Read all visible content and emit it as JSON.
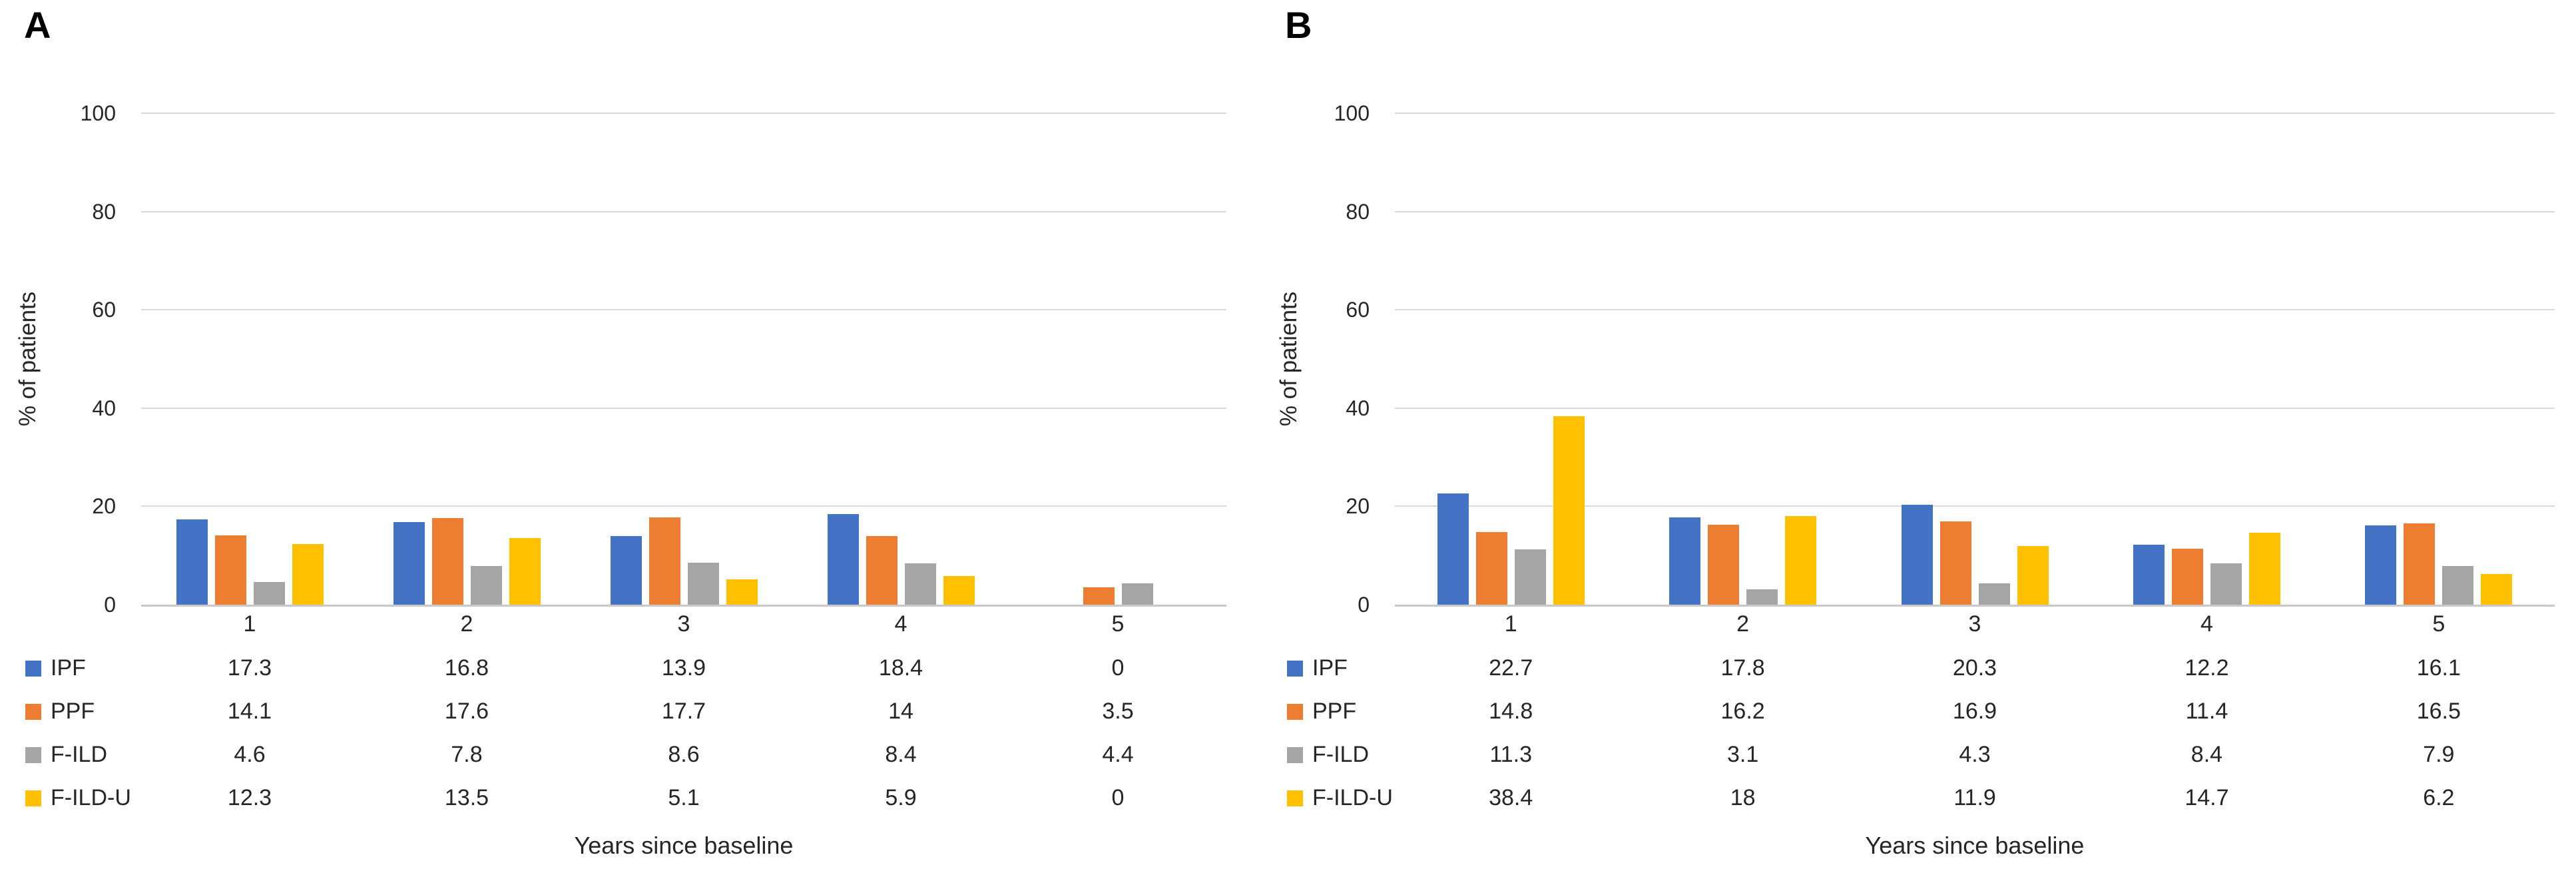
{
  "figure_title": "",
  "chart_data": [
    {
      "type": "bar",
      "panel_label": "A",
      "xlabel": "Years since baseline",
      "ylabel": "% of patients",
      "ylim": [
        0,
        100
      ],
      "yticks": [
        0,
        20,
        40,
        60,
        80,
        100
      ],
      "grid": "horizontal",
      "legend_position": "left-of-data-table",
      "categories": [
        "1",
        "2",
        "3",
        "4",
        "5"
      ],
      "series": [
        {
          "name": "IPF",
          "color": "#4472C4",
          "values": [
            17.3,
            16.8,
            13.9,
            18.4,
            0
          ]
        },
        {
          "name": "PPF",
          "color": "#ED7D31",
          "values": [
            14.1,
            17.6,
            17.7,
            14,
            3.5
          ]
        },
        {
          "name": "F-ILD",
          "color": "#A5A5A5",
          "values": [
            4.6,
            7.8,
            8.6,
            8.4,
            4.4
          ]
        },
        {
          "name": "F-ILD-U",
          "color": "#FFC000",
          "values": [
            12.3,
            13.5,
            5.1,
            5.9,
            0
          ]
        }
      ]
    },
    {
      "type": "bar",
      "panel_label": "B",
      "xlabel": "Years since baseline",
      "ylabel": "% of patients",
      "ylim": [
        0,
        100
      ],
      "yticks": [
        0,
        20,
        40,
        60,
        80,
        100
      ],
      "grid": "horizontal",
      "legend_position": "left-of-data-table",
      "categories": [
        "1",
        "2",
        "3",
        "4",
        "5"
      ],
      "series": [
        {
          "name": "IPF",
          "color": "#4472C4",
          "values": [
            22.7,
            17.8,
            20.3,
            12.2,
            16.1
          ]
        },
        {
          "name": "PPF",
          "color": "#ED7D31",
          "values": [
            14.8,
            16.2,
            16.9,
            11.4,
            16.5
          ]
        },
        {
          "name": "F-ILD",
          "color": "#A5A5A5",
          "values": [
            11.3,
            3.1,
            4.3,
            8.4,
            7.9
          ]
        },
        {
          "name": "F-ILD-U",
          "color": "#FFC000",
          "values": [
            38.4,
            18,
            11.9,
            14.7,
            6.2
          ]
        }
      ]
    }
  ],
  "colors": {
    "series_blue": "#4472C4",
    "series_orange": "#ED7D31",
    "series_gray": "#A5A5A5",
    "series_yellow": "#FFC000",
    "gridline": "#d9d9d9",
    "axis_line": "#c9c7c7",
    "text": "#262626"
  }
}
